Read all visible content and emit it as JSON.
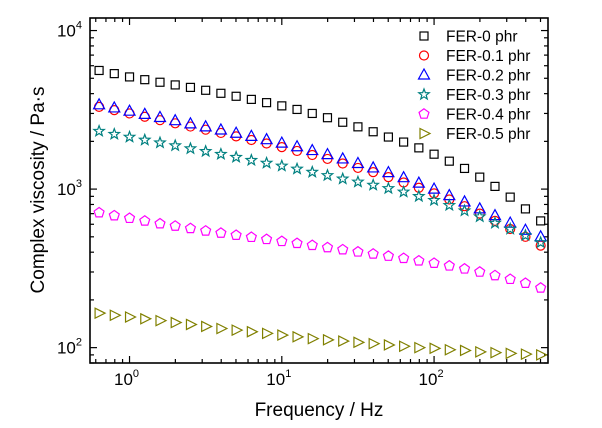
{
  "chart_data": {
    "type": "scatter",
    "xlabel": "Frequency / Hz",
    "ylabel": "Complex viscosity / Pa·s",
    "xscale": "log",
    "yscale": "log",
    "xlim": [
      0.55,
      560
    ],
    "ylim": [
      80,
      12000
    ],
    "legend_position": "top-right",
    "x_ticks": [
      {
        "value": 1,
        "base": "10",
        "exp": "0"
      },
      {
        "value": 10,
        "base": "10",
        "exp": "1"
      },
      {
        "value": 100,
        "base": "10",
        "exp": "2"
      }
    ],
    "y_ticks": [
      {
        "value": 100,
        "base": "10",
        "exp": "2"
      },
      {
        "value": 1000,
        "base": "10",
        "exp": "3"
      },
      {
        "value": 10000,
        "base": "10",
        "exp": "4"
      }
    ],
    "x": [
      0.631,
      0.794,
      1.0,
      1.259,
      1.585,
      1.995,
      2.512,
      3.162,
      3.981,
      5.012,
      6.31,
      7.943,
      10.0,
      12.59,
      15.85,
      19.95,
      25.12,
      31.62,
      39.81,
      50.12,
      63.1,
      79.43,
      100.0,
      125.9,
      158.5,
      199.5,
      251.2,
      316.2,
      398.1,
      501.2
    ],
    "series": [
      {
        "name": "FER-0 phr",
        "marker": "square",
        "color": "#000000",
        "values": [
          5600,
          5350,
          5100,
          4900,
          4720,
          4540,
          4380,
          4200,
          4020,
          3850,
          3680,
          3510,
          3350,
          3180,
          3000,
          2820,
          2640,
          2470,
          2300,
          2130,
          1980,
          1820,
          1660,
          1500,
          1350,
          1190,
          1040,
          890,
          750,
          630
        ]
      },
      {
        "name": "FER-0.1 phr",
        "marker": "circle",
        "color": "#ff0000",
        "values": [
          3300,
          3150,
          3000,
          2860,
          2720,
          2600,
          2480,
          2370,
          2260,
          2150,
          2040,
          1940,
          1840,
          1740,
          1640,
          1550,
          1450,
          1360,
          1280,
          1190,
          1100,
          1020,
          940,
          860,
          780,
          700,
          630,
          560,
          500,
          440
        ]
      },
      {
        "name": "FER-0.2 phr",
        "marker": "triangle-up",
        "color": "#0000ff",
        "values": [
          3400,
          3250,
          3100,
          2960,
          2830,
          2700,
          2580,
          2470,
          2360,
          2250,
          2150,
          2050,
          1950,
          1850,
          1750,
          1650,
          1550,
          1450,
          1360,
          1270,
          1180,
          1090,
          1000,
          910,
          830,
          750,
          680,
          610,
          550,
          500
        ]
      },
      {
        "name": "FER-0.3 phr",
        "marker": "star",
        "color": "#008080",
        "values": [
          2320,
          2220,
          2130,
          2040,
          1960,
          1880,
          1800,
          1730,
          1660,
          1590,
          1520,
          1460,
          1400,
          1340,
          1280,
          1220,
          1160,
          1110,
          1060,
          1010,
          960,
          900,
          850,
          790,
          730,
          670,
          610,
          560,
          510,
          460
        ]
      },
      {
        "name": "FER-0.4 phr",
        "marker": "pentagon",
        "color": "#ff00ff",
        "values": [
          710,
          680,
          655,
          630,
          605,
          585,
          565,
          545,
          528,
          512,
          497,
          482,
          468,
          455,
          442,
          428,
          415,
          402,
          390,
          378,
          366,
          353,
          341,
          328,
          314,
          300,
          285,
          270,
          255,
          238
        ]
      },
      {
        "name": "FER-0.5 phr",
        "marker": "triangle-right",
        "color": "#808000",
        "values": [
          165,
          160,
          156,
          152,
          148,
          144,
          140,
          136,
          132,
          129,
          126,
          123,
          120,
          117,
          114,
          112,
          110,
          108,
          106,
          104,
          102,
          100,
          99,
          97,
          96,
          94,
          93,
          92,
          91,
          90
        ]
      }
    ]
  }
}
